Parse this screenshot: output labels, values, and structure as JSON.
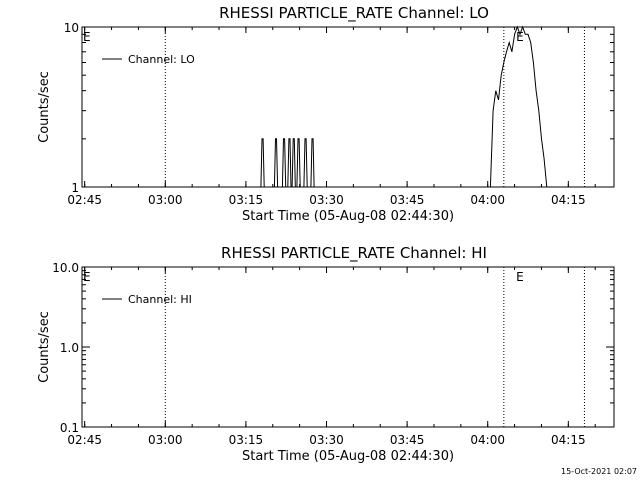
{
  "footer_timestamp": "15-Oct-2021 02:07",
  "chart_data": [
    {
      "type": "line",
      "title": "RHESSI PARTICLE_RATE Channel: LO",
      "xlabel": "Start Time (05-Aug-08 02:44:30)",
      "ylabel": "Counts/sec",
      "x_unit": "minutes since 02:44:30",
      "xlim": [
        0,
        99
      ],
      "ylim": [
        1,
        10
      ],
      "log_y": true,
      "x_ticks": [
        {
          "value": 0.5,
          "label": "02:45"
        },
        {
          "value": 15.5,
          "label": "03:00"
        },
        {
          "value": 30.5,
          "label": "03:15"
        },
        {
          "value": 45.5,
          "label": "03:30"
        },
        {
          "value": 60.5,
          "label": "03:45"
        },
        {
          "value": 75.5,
          "label": "04:00"
        },
        {
          "value": 90.5,
          "label": "04:15"
        }
      ],
      "y_ticks": [
        {
          "value": 1,
          "label": "1"
        },
        {
          "value": 10,
          "label": "10"
        }
      ],
      "vertical_lines": [
        15.5,
        78.5,
        93.5
      ],
      "event_markers": [
        {
          "x": 0,
          "label": "E"
        },
        {
          "x": 80.6,
          "label": "E"
        }
      ],
      "legend": {
        "position": "top-left",
        "entries": [
          "Channel: LO"
        ]
      },
      "series": [
        {
          "name": "Channel: LO",
          "x": [
            0,
            33.3,
            33.5,
            33.7,
            33.9,
            35.8,
            36.0,
            36.2,
            36.4,
            37.3,
            37.5,
            37.7,
            37.9,
            38.3,
            38.5,
            38.7,
            38.9,
            39.1,
            39.3,
            39.5,
            39.7,
            40.0,
            40.2,
            40.4,
            40.6,
            41.3,
            41.5,
            41.7,
            41.9,
            42.6,
            42.8,
            43.0,
            43.2,
            76.0,
            76.5,
            77.0,
            77.5,
            78.0,
            78.5,
            79.0,
            79.5,
            80.0,
            80.5,
            81.0,
            81.5,
            82.0,
            82.5,
            83.0,
            83.5,
            84.0,
            84.5,
            85.0,
            85.5,
            86.0,
            86.5,
            87.0,
            99
          ],
          "y": [
            1,
            1,
            2,
            2,
            1,
            1,
            2,
            2,
            1,
            1,
            2,
            2,
            1,
            1,
            2,
            2,
            1,
            1,
            2,
            2,
            1,
            1,
            2,
            2,
            1,
            1,
            2,
            2,
            1,
            1,
            2,
            2,
            1,
            1,
            3,
            4,
            3.5,
            5,
            6,
            7,
            8,
            7,
            9,
            10,
            9,
            10,
            9,
            9,
            8,
            6,
            4,
            3,
            2,
            1.5,
            1,
            1,
            1
          ]
        }
      ]
    },
    {
      "type": "line",
      "title": "RHESSI PARTICLE_RATE Channel: HI",
      "xlabel": "Start Time (05-Aug-08 02:44:30)",
      "ylabel": "Counts/sec",
      "x_unit": "minutes since 02:44:30",
      "xlim": [
        0,
        99
      ],
      "ylim": [
        0.1,
        10
      ],
      "log_y": true,
      "x_ticks": [
        {
          "value": 0.5,
          "label": "02:45"
        },
        {
          "value": 15.5,
          "label": "03:00"
        },
        {
          "value": 30.5,
          "label": "03:15"
        },
        {
          "value": 45.5,
          "label": "03:30"
        },
        {
          "value": 60.5,
          "label": "03:45"
        },
        {
          "value": 75.5,
          "label": "04:00"
        },
        {
          "value": 90.5,
          "label": "04:15"
        }
      ],
      "y_ticks": [
        {
          "value": 0.1,
          "label": "0.1"
        },
        {
          "value": 1,
          "label": "1.0"
        },
        {
          "value": 10,
          "label": "10.0"
        }
      ],
      "vertical_lines": [
        15.5,
        78.5,
        93.5
      ],
      "event_markers": [
        {
          "x": 0,
          "label": "E"
        },
        {
          "x": 80.6,
          "label": "E"
        }
      ],
      "legend": {
        "position": "top-left",
        "entries": [
          "Channel: HI"
        ]
      },
      "series": [
        {
          "name": "Channel: HI",
          "x": [],
          "y": []
        }
      ]
    }
  ]
}
